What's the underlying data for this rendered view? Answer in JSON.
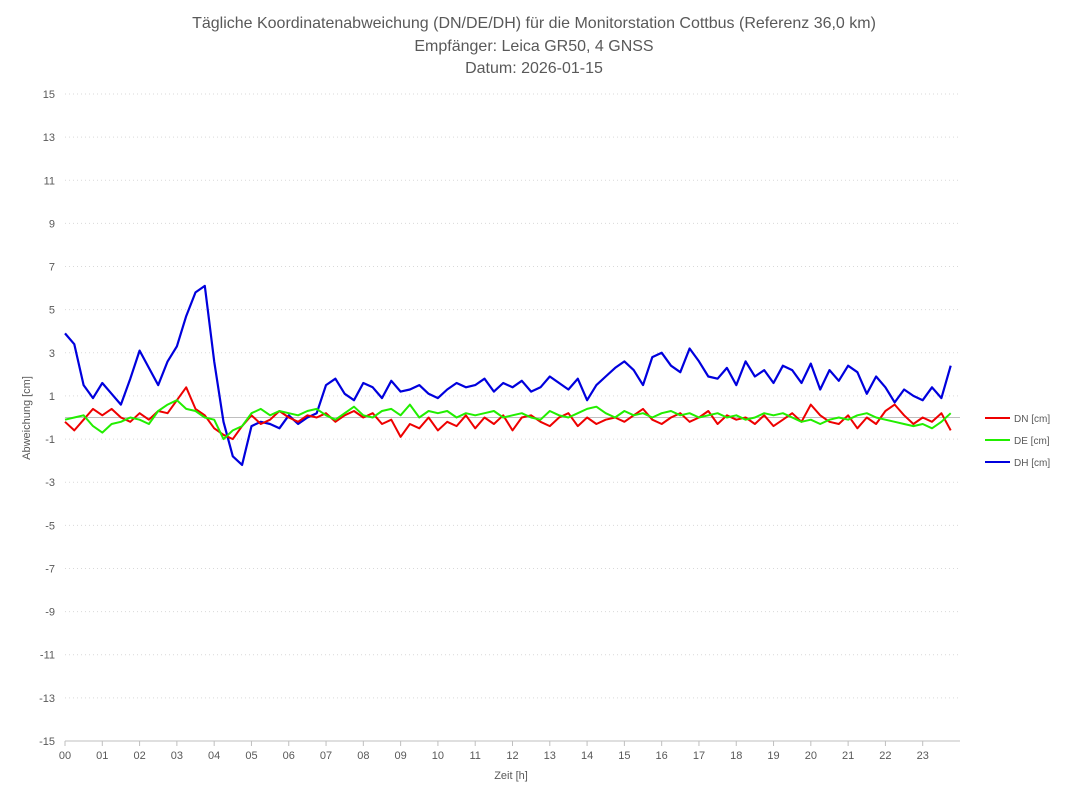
{
  "chart_data": {
    "type": "line",
    "title": "Tägliche Koordinatenabweichung (DN/DE/DH) für die Monitorstation Cottbus (Referenz 36,0 km)",
    "subtitle": "Empfänger: Leica GR50, 4 GNSS",
    "date_line": "Datum: 2026-01-15",
    "xlabel": "Zeit [h]",
    "ylabel": "Abweichung [cm]",
    "xlim": [
      0,
      24
    ],
    "ylim": [
      -15,
      15
    ],
    "x_ticks": [
      "00",
      "01",
      "02",
      "03",
      "04",
      "05",
      "06",
      "07",
      "08",
      "09",
      "10",
      "11",
      "12",
      "13",
      "14",
      "15",
      "16",
      "17",
      "18",
      "19",
      "20",
      "21",
      "22",
      "23"
    ],
    "y_ticks": [
      -15,
      -13,
      -11,
      -9,
      -7,
      -5,
      -3,
      -1,
      1,
      3,
      5,
      7,
      9,
      11,
      13,
      15
    ],
    "grid": "horizontal dotted",
    "legend_position": "right",
    "x": [
      0,
      0.25,
      0.5,
      0.75,
      1,
      1.25,
      1.5,
      1.75,
      2,
      2.25,
      2.5,
      2.75,
      3,
      3.25,
      3.5,
      3.75,
      4,
      4.25,
      4.5,
      4.75,
      5,
      5.25,
      5.5,
      5.75,
      6,
      6.25,
      6.5,
      6.75,
      7,
      7.25,
      7.5,
      7.75,
      8,
      8.25,
      8.5,
      8.75,
      9,
      9.25,
      9.5,
      9.75,
      10,
      10.25,
      10.5,
      10.75,
      11,
      11.25,
      11.5,
      11.75,
      12,
      12.25,
      12.5,
      12.75,
      13,
      13.25,
      13.5,
      13.75,
      14,
      14.25,
      14.5,
      14.75,
      15,
      15.25,
      15.5,
      15.75,
      16,
      16.25,
      16.5,
      16.75,
      17,
      17.25,
      17.5,
      17.75,
      18,
      18.25,
      18.5,
      18.75,
      19,
      19.25,
      19.5,
      19.75,
      20,
      20.25,
      20.5,
      20.75,
      21,
      21.25,
      21.5,
      21.75,
      22,
      22.25,
      22.5,
      22.75,
      23,
      23.25,
      23.5,
      23.75
    ],
    "series": [
      {
        "name": "DN [cm]",
        "color": "#ee0000",
        "values": [
          -0.2,
          -0.6,
          -0.1,
          0.4,
          0.1,
          0.4,
          0.0,
          -0.2,
          0.2,
          -0.1,
          0.3,
          0.2,
          0.8,
          1.4,
          0.4,
          0.1,
          -0.5,
          -0.8,
          -1.0,
          -0.4,
          0.1,
          -0.3,
          -0.1,
          0.3,
          0.0,
          -0.2,
          0.1,
          0.0,
          0.2,
          -0.2,
          0.1,
          0.3,
          0.0,
          0.2,
          -0.3,
          -0.1,
          -0.9,
          -0.3,
          -0.5,
          0.0,
          -0.6,
          -0.2,
          -0.4,
          0.1,
          -0.5,
          0.0,
          -0.3,
          0.1,
          -0.6,
          0.0,
          0.1,
          -0.2,
          -0.4,
          0.0,
          0.2,
          -0.4,
          0.0,
          -0.3,
          -0.1,
          0.0,
          -0.2,
          0.1,
          0.4,
          -0.1,
          -0.3,
          0.0,
          0.2,
          -0.2,
          0.0,
          0.3,
          -0.3,
          0.1,
          -0.1,
          0.0,
          -0.3,
          0.1,
          -0.4,
          -0.1,
          0.2,
          -0.2,
          0.6,
          0.1,
          -0.2,
          -0.3,
          0.1,
          -0.5,
          0.0,
          -0.3,
          0.3,
          0.6,
          0.1,
          -0.3,
          0.0,
          -0.2,
          0.2,
          -0.6
        ]
      },
      {
        "name": "DE [cm]",
        "color": "#22ee00",
        "values": [
          -0.1,
          0.0,
          0.1,
          -0.4,
          -0.7,
          -0.3,
          -0.2,
          0.0,
          -0.1,
          -0.3,
          0.3,
          0.6,
          0.8,
          0.4,
          0.3,
          0.0,
          -0.1,
          -1.0,
          -0.6,
          -0.4,
          0.2,
          0.4,
          0.1,
          0.3,
          0.2,
          0.1,
          0.3,
          0.4,
          0.1,
          -0.1,
          0.2,
          0.5,
          0.1,
          0.0,
          0.3,
          0.4,
          0.1,
          0.6,
          0.0,
          0.3,
          0.2,
          0.3,
          0.0,
          0.2,
          0.1,
          0.2,
          0.3,
          0.0,
          0.1,
          0.2,
          0.0,
          -0.1,
          0.3,
          0.1,
          0.0,
          0.2,
          0.4,
          0.5,
          0.2,
          0.0,
          0.3,
          0.1,
          0.2,
          0.0,
          0.2,
          0.3,
          0.1,
          0.2,
          0.0,
          0.1,
          0.2,
          0.0,
          0.1,
          -0.1,
          0.0,
          0.2,
          0.1,
          0.2,
          0.0,
          -0.2,
          -0.1,
          -0.3,
          -0.1,
          0.0,
          -0.1,
          0.1,
          0.2,
          0.0,
          -0.1,
          -0.2,
          -0.3,
          -0.4,
          -0.3,
          -0.5,
          -0.2,
          0.2
        ]
      },
      {
        "name": "DH [cm]",
        "color": "#0000dd",
        "values": [
          3.9,
          3.4,
          1.5,
          0.9,
          1.6,
          1.1,
          0.6,
          1.8,
          3.1,
          2.3,
          1.5,
          2.6,
          3.3,
          4.7,
          5.8,
          6.1,
          2.6,
          -0.2,
          -1.8,
          -2.2,
          -0.4,
          -0.2,
          -0.3,
          -0.5,
          0.1,
          -0.3,
          0.0,
          0.2,
          1.5,
          1.8,
          1.1,
          0.8,
          1.6,
          1.4,
          0.9,
          1.7,
          1.2,
          1.3,
          1.5,
          1.1,
          0.9,
          1.3,
          1.6,
          1.4,
          1.5,
          1.8,
          1.2,
          1.6,
          1.4,
          1.7,
          1.2,
          1.4,
          1.9,
          1.6,
          1.3,
          1.8,
          0.8,
          1.5,
          1.9,
          2.3,
          2.6,
          2.2,
          1.5,
          2.8,
          3.0,
          2.4,
          2.1,
          3.2,
          2.6,
          1.9,
          1.8,
          2.3,
          1.5,
          2.6,
          1.9,
          2.2,
          1.6,
          2.4,
          2.2,
          1.6,
          2.5,
          1.3,
          2.2,
          1.7,
          2.4,
          2.1,
          1.1,
          1.9,
          1.4,
          0.7,
          1.3,
          1.0,
          0.8,
          1.4,
          0.9,
          2.4
        ]
      }
    ]
  }
}
